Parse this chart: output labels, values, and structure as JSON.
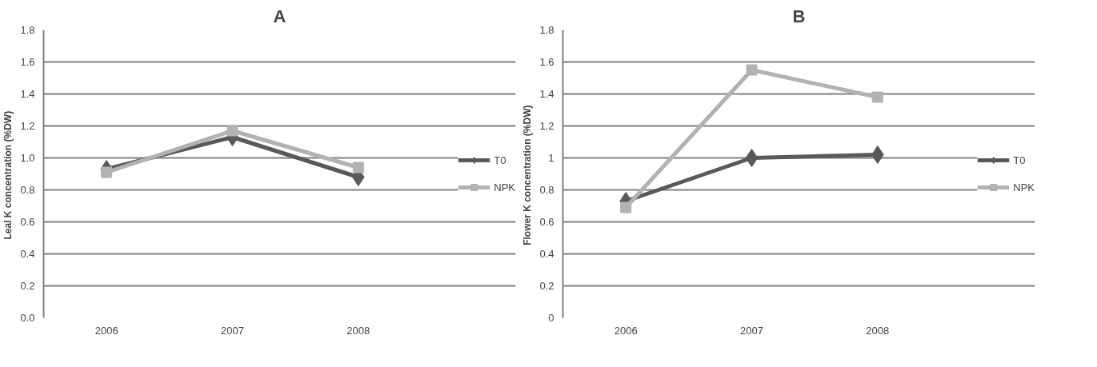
{
  "chart_data": [
    {
      "type": "line",
      "title": "A",
      "ylabel": "Leal K concentration  (%DW)",
      "categories": [
        "2006",
        "2007",
        "2008"
      ],
      "ylim": [
        0,
        1.8
      ],
      "yticks": [
        {
          "value": 0,
          "label": "0.0"
        },
        0.2,
        0.4,
        0.6,
        0.8,
        {
          "value": 1,
          "label": "1.0"
        },
        1.2,
        1.4,
        1.6,
        1.8
      ],
      "grid": "y",
      "legend": "right",
      "series": [
        {
          "name": "T0",
          "color": "#595959",
          "marker": "diamond",
          "values": [
            0.93,
            1.13,
            0.88
          ]
        },
        {
          "name": "NPK",
          "color": "#b2b2b2",
          "marker": "square",
          "values": [
            0.91,
            1.17,
            0.94
          ]
        }
      ]
    },
    {
      "type": "line",
      "title": "B",
      "ylabel": "Flower K concentration  (%DW)",
      "categories": [
        "2006",
        "2007",
        "2008"
      ],
      "ylim": [
        0,
        1.8
      ],
      "yticks": [
        0,
        0.2,
        0.4,
        0.6,
        0.8,
        1,
        1.2,
        1.4,
        1.6,
        1.8
      ],
      "grid": "y",
      "legend": "right",
      "series": [
        {
          "name": "T0",
          "color": "#595959",
          "marker": "diamond",
          "values": [
            0.73,
            1.0,
            1.02
          ]
        },
        {
          "name": "NPK",
          "color": "#b2b2b2",
          "marker": "square",
          "values": [
            0.69,
            1.55,
            1.38
          ]
        }
      ]
    }
  ]
}
